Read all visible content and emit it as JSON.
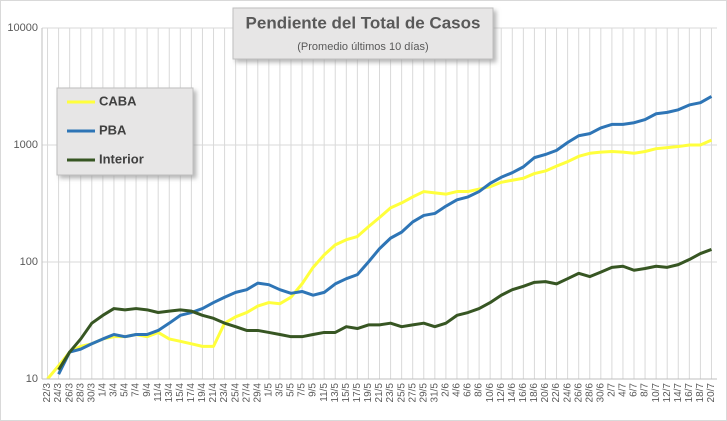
{
  "chart_data": {
    "type": "line",
    "title": "Pendiente del Total de Casos",
    "subtitle": "(Promedio últimos 10 días)",
    "log_scale": true,
    "grid": true,
    "legend": "top-left",
    "ylim": [
      10,
      10000
    ],
    "yticks": [
      10,
      100,
      1000,
      10000
    ],
    "categories": [
      "22/3",
      "24/3",
      "26/3",
      "28/3",
      "30/3",
      "1/4",
      "3/4",
      "5/4",
      "7/4",
      "9/4",
      "11/4",
      "13/4",
      "15/4",
      "17/4",
      "19/4",
      "21/4",
      "23/4",
      "25/4",
      "27/4",
      "29/4",
      "1/5",
      "3/5",
      "5/5",
      "7/5",
      "9/5",
      "11/5",
      "13/5",
      "15/5",
      "17/5",
      "19/5",
      "21/5",
      "23/5",
      "25/5",
      "27/5",
      "29/5",
      "31/5",
      "2/6",
      "4/6",
      "6/6",
      "8/6",
      "10/6",
      "12/6",
      "14/6",
      "16/6",
      "18/6",
      "20/6",
      "22/6",
      "24/6",
      "26/6",
      "28/6",
      "30/6",
      "2/7",
      "4/7",
      "6/7",
      "8/7",
      "10/7",
      "12/7",
      "14/7",
      "16/7",
      "18/7",
      "20/7"
    ],
    "series": [
      {
        "name": "CABA",
        "color": "#ffff3c",
        "values": [
          10,
          13,
          17,
          19,
          20,
          22,
          23,
          23,
          24,
          23,
          25,
          22,
          21,
          20,
          19,
          19,
          30,
          34,
          37,
          42,
          45,
          44,
          50,
          65,
          90,
          115,
          140,
          155,
          165,
          200,
          240,
          290,
          320,
          360,
          400,
          390,
          380,
          400,
          400,
          420,
          440,
          480,
          500,
          520,
          570,
          600,
          660,
          720,
          800,
          850,
          870,
          880,
          870,
          850,
          880,
          930,
          950,
          970,
          1000,
          1000,
          1100
        ]
      },
      {
        "name": "PBA",
        "color": "#2e75b6",
        "values": [
          null,
          11,
          17,
          18,
          20,
          22,
          24,
          23,
          24,
          24,
          26,
          30,
          35,
          37,
          40,
          45,
          50,
          55,
          58,
          66,
          64,
          58,
          54,
          56,
          52,
          55,
          65,
          72,
          78,
          100,
          130,
          160,
          180,
          220,
          250,
          260,
          300,
          340,
          360,
          400,
          470,
          530,
          580,
          650,
          780,
          830,
          900,
          1050,
          1200,
          1250,
          1400,
          1500,
          1500,
          1550,
          1650,
          1850,
          1900,
          2000,
          2200,
          2300,
          2600
        ]
      },
      {
        "name": "Interior",
        "color": "#375623",
        "values": [
          null,
          12,
          17,
          22,
          30,
          35,
          40,
          39,
          40,
          39,
          37,
          38,
          39,
          38,
          35,
          33,
          30,
          28,
          26,
          26,
          25,
          24,
          23,
          23,
          24,
          25,
          25,
          28,
          27,
          29,
          29,
          30,
          28,
          29,
          30,
          28,
          30,
          35,
          37,
          40,
          45,
          52,
          58,
          62,
          67,
          68,
          65,
          72,
          80,
          75,
          82,
          90,
          92,
          85,
          88,
          92,
          90,
          95,
          105,
          118,
          128
        ]
      }
    ]
  }
}
